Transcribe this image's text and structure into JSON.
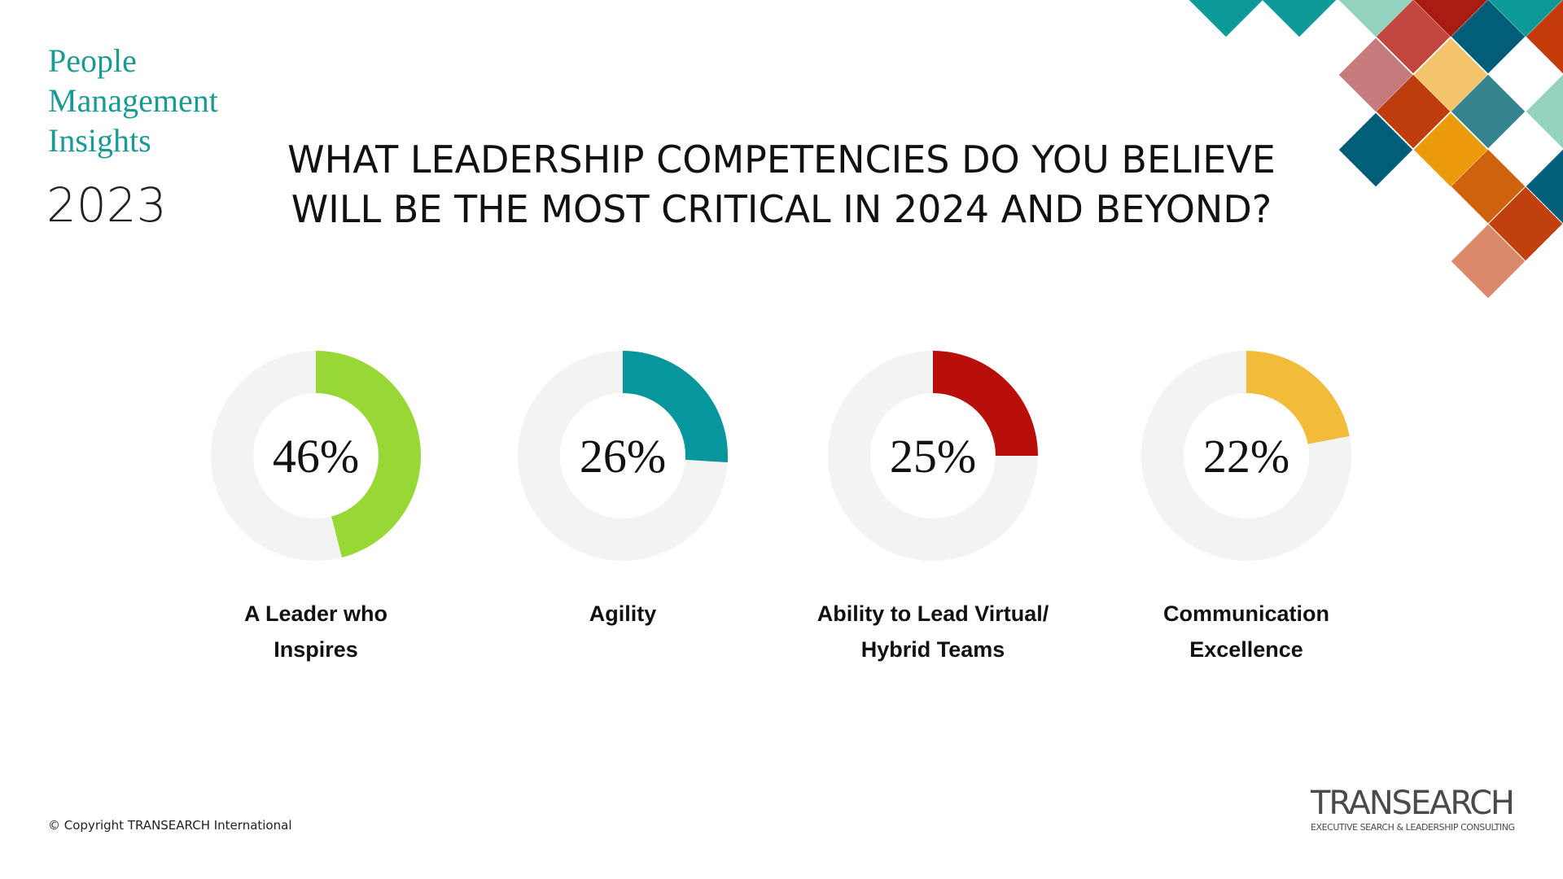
{
  "header": {
    "series_title": [
      "People",
      "Management",
      "Insights"
    ],
    "year": "2023",
    "question": [
      "WHAT LEADERSHIP COMPETENCIES DO YOU BELIEVE",
      "WILL BE THE MOST CRITICAL IN 2024 AND BEYOND?"
    ]
  },
  "chart_data": [
    {
      "type": "donut",
      "title": [
        "A Leader who",
        "Inspires"
      ],
      "values": [
        46
      ],
      "value_labels": [
        "46%"
      ],
      "color": "#97d836"
    },
    {
      "type": "donut",
      "title": [
        "Agility"
      ],
      "values": [
        26
      ],
      "value_labels": [
        "26%"
      ],
      "color": "#07969b"
    },
    {
      "type": "donut",
      "title": [
        "Ability to Lead Virtual/",
        "Hybrid Teams"
      ],
      "values": [
        25
      ],
      "value_labels": [
        "25%"
      ],
      "color": "#b80f0a"
    },
    {
      "type": "donut",
      "title": [
        "Communication",
        "Excellence"
      ],
      "values": [
        22
      ],
      "value_labels": [
        "22%"
      ],
      "color": "#f0bc3a"
    }
  ],
  "footer": {
    "copyright": "© Copyright TRANSEARCH International",
    "logo": "TRANSEARCH",
    "tagline": "EXECUTIVE SEARCH & LEADERSHIP CONSULTING"
  }
}
